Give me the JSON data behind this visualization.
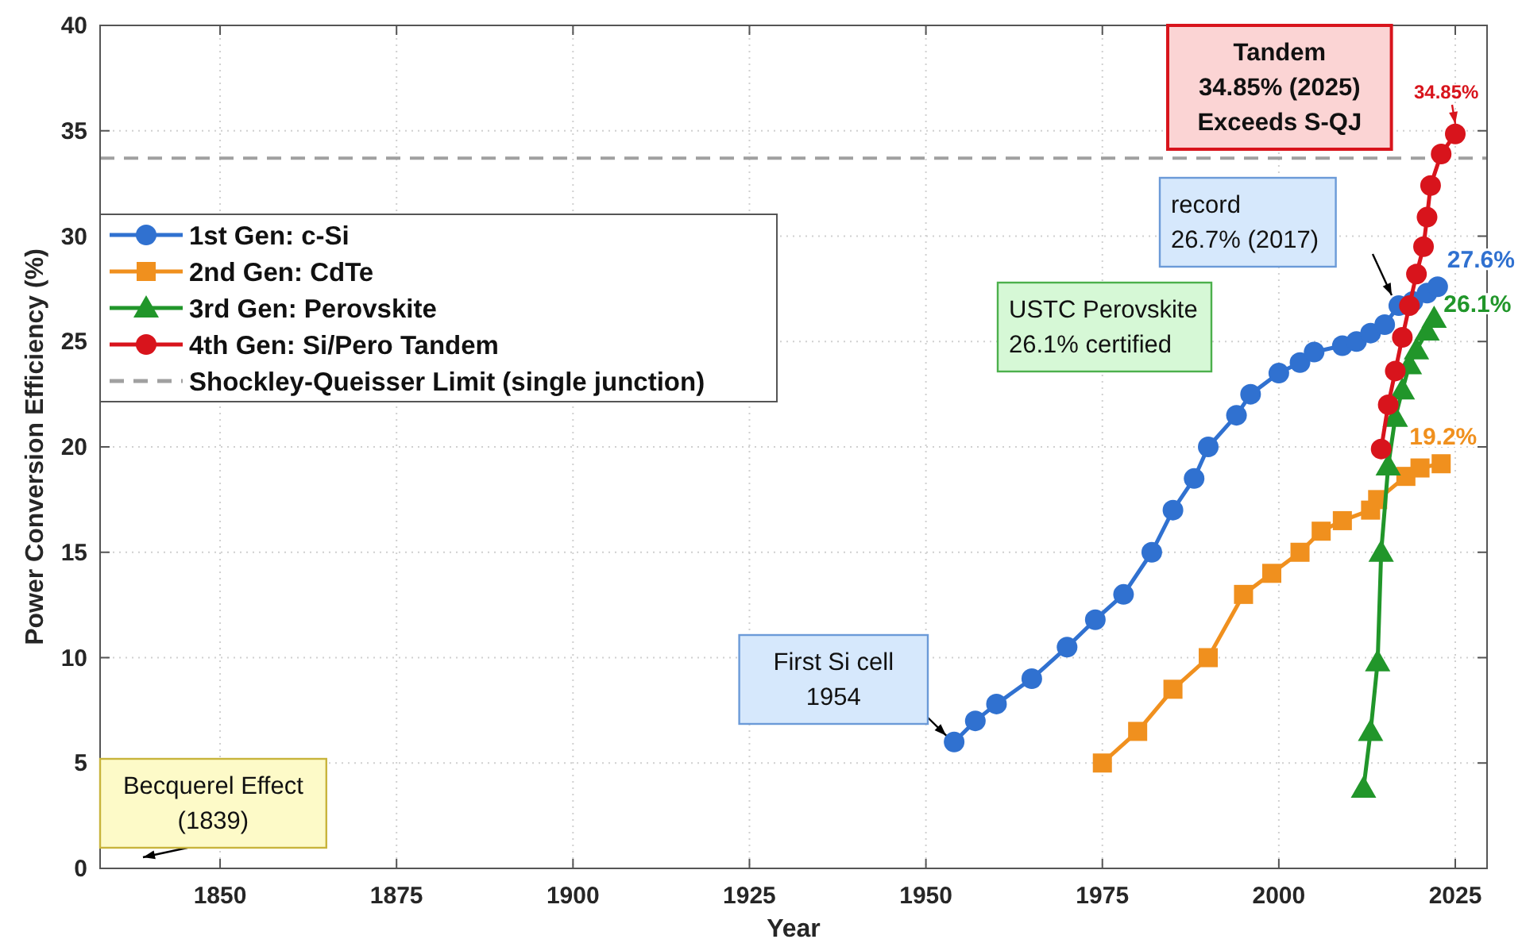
{
  "chart_data": {
    "type": "line",
    "xlabel": "Year",
    "ylabel": "Power Conversion Efficiency (%)",
    "xlim": [
      1833,
      2029.5
    ],
    "xticks": [
      1850,
      1875,
      1900,
      1925,
      1950,
      1975,
      2000,
      2025
    ],
    "ylim": [
      0,
      40
    ],
    "yticks": [
      0,
      5,
      10,
      15,
      20,
      25,
      30,
      35,
      40
    ],
    "grid": true,
    "legend": "left",
    "line_style": "solid",
    "series": [
      {
        "name": "1st Gen: c-Si",
        "color": "#3071d0",
        "marker": "circle",
        "x": [
          1954,
          1957,
          1960,
          1965,
          1970,
          1974,
          1978,
          1982,
          1985,
          1988,
          1990,
          1994,
          1996,
          2000,
          2003,
          2005,
          2009,
          2011,
          2013,
          2015,
          2017,
          2019,
          2021,
          2022.5
        ],
        "values": [
          6,
          7,
          7.8,
          9,
          10.5,
          11.8,
          13,
          15,
          17,
          18.5,
          20,
          21.5,
          22.5,
          23.5,
          24,
          24.5,
          24.8,
          25,
          25.4,
          25.8,
          26.7,
          26.9,
          27.3,
          27.6
        ]
      },
      {
        "name": "2nd Gen: CdTe",
        "color": "#f0901e",
        "marker": "square",
        "x": [
          1975,
          1980,
          1985,
          1990,
          1995,
          1999,
          2003,
          2006,
          2009,
          2013,
          2014,
          2018,
          2020,
          2023
        ],
        "values": [
          5,
          6.5,
          8.5,
          10,
          13,
          14,
          15,
          16,
          16.5,
          17,
          17.5,
          18.6,
          19,
          19.2
        ]
      },
      {
        "name": "3rd Gen: Perovskite",
        "color": "#21962a",
        "marker": "triangle",
        "x": [
          2012,
          2013,
          2014,
          2014.5,
          2015.5,
          2016.5,
          2017.5,
          2018.5,
          2019.5,
          2021,
          2022
        ],
        "values": [
          3.8,
          6.5,
          9.8,
          15,
          19.1,
          21.4,
          22.7,
          23.9,
          24.6,
          25.5,
          26.1
        ]
      },
      {
        "name": "4th Gen: Si/Pero Tandem",
        "color": "#d8141c",
        "marker": "circle",
        "x": [
          2014.5,
          2015.5,
          2016.5,
          2017.5,
          2018.5,
          2019.5,
          2020.5,
          2021,
          2021.5,
          2023,
          2025
        ],
        "values": [
          19.9,
          22,
          23.6,
          25.2,
          26.7,
          28.2,
          29.5,
          30.9,
          32.4,
          33.9,
          34.85
        ]
      }
    ],
    "ref_lines": [
      {
        "axis": "y",
        "value": 33.7,
        "label": "Shockley-Queisser Limit (single junction)",
        "color": "#a0a0a0",
        "line_style": "dashed"
      }
    ],
    "annotations": [
      "Becquerel Effect\n(1839)",
      {
        "text": "First Si cell\n1954",
        "x": 1954,
        "y": 6
      },
      "USTC Perovskite\n26.1% certified",
      "record\n26.7% (2017)",
      "Tandem\n34.85% (2025)\nExceeds S-QJ",
      {
        "text": "27.6%",
        "x": 2022.5,
        "y": 27.6
      },
      {
        "text": "19.2%",
        "x": 2023,
        "y": 19.2
      },
      {
        "text": "26.1%",
        "x": 2022,
        "y": 26.1
      },
      "34.85%"
    ]
  }
}
